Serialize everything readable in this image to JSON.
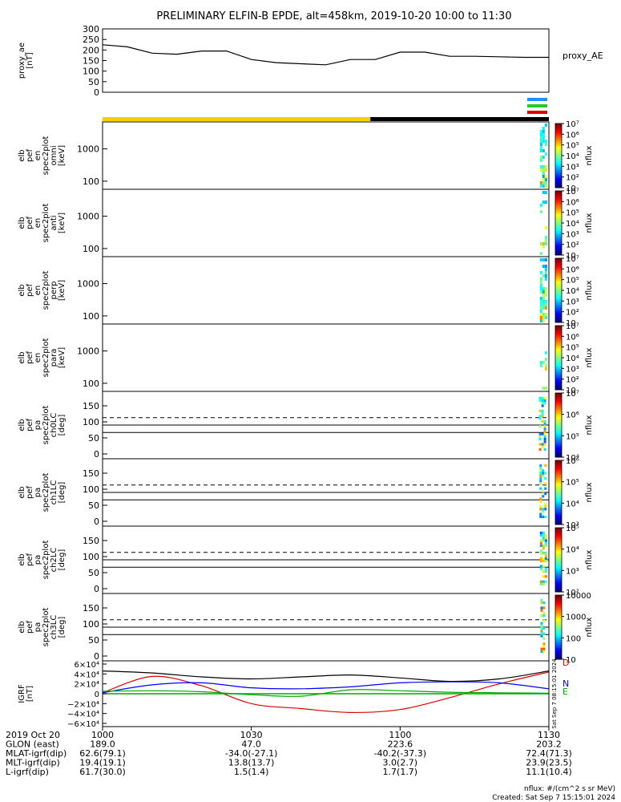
{
  "title": "PRELIMINARY ELFIN-B EPDE, alt=458km, 2019-10-20 10:00 to 11:30",
  "colors": {
    "ae_line": "#000000",
    "bar_yellow": "#f5d000",
    "bar_black": "#000000",
    "marker_blue": "#1e90ff",
    "marker_green": "#22cc22",
    "marker_red": "#dd0000",
    "igrf_n": "#0000ff",
    "igrf_e": "#00aa00",
    "igrf_d": "#dd0000",
    "igrf_total": "#000000"
  },
  "proxy_ae": {
    "ylabel_lines": [
      "proxy_ae",
      "[nT]"
    ],
    "legend": "proxy_AE",
    "yticks": [
      "300",
      "250",
      "200",
      "150",
      "100",
      "50",
      "0"
    ],
    "chart_data": {
      "type": "line",
      "ylim": [
        0,
        300
      ],
      "x_minutes": [
        0,
        5,
        10,
        15,
        20,
        25,
        30,
        35,
        40,
        45,
        50,
        55,
        60,
        65,
        70,
        75,
        80,
        85,
        90
      ],
      "values": [
        225,
        215,
        185,
        180,
        195,
        195,
        155,
        140,
        135,
        130,
        155,
        155,
        190,
        190,
        170,
        170,
        168,
        165,
        165
      ]
    }
  },
  "spec_panels": [
    {
      "ylabel": [
        "elb",
        "pef",
        "en",
        "spec2plot",
        "omni",
        "[keV]"
      ],
      "yticks": [
        "1000",
        "100"
      ],
      "cbar_ticks": [
        "10⁷",
        "10⁶",
        "10⁵",
        "10⁴",
        "10³",
        "10²",
        "10"
      ],
      "cbar_label": "nflux"
    },
    {
      "ylabel": [
        "elb",
        "pef",
        "en",
        "spec2plot",
        "anti",
        "[keV]"
      ],
      "yticks": [
        "1000",
        "100"
      ],
      "cbar_ticks": [
        "10⁷",
        "10⁶",
        "10⁵",
        "10⁴",
        "10³",
        "10²",
        "10"
      ],
      "cbar_label": "nflux"
    },
    {
      "ylabel": [
        "elb",
        "pef",
        "en",
        "spec2plot",
        "perp",
        "[keV]"
      ],
      "yticks": [
        "1000",
        "100"
      ],
      "cbar_ticks": [
        "10⁷",
        "10⁶",
        "10⁵",
        "10⁴",
        "10³",
        "10²",
        "10"
      ],
      "cbar_label": "nflux"
    },
    {
      "ylabel": [
        "elb",
        "pef",
        "en",
        "spec2plot",
        "para",
        "[keV]"
      ],
      "yticks": [
        "1000",
        "100"
      ],
      "cbar_ticks": [
        "10⁷",
        "10⁶",
        "10⁵",
        "10⁴",
        "10³",
        "10²",
        "10"
      ],
      "cbar_label": "nflux"
    }
  ],
  "pa_panels": [
    {
      "ylabel": [
        "elb",
        "pef",
        "pa",
        "spec2plot",
        "ch0LC",
        "[deg]"
      ],
      "yticks": [
        "150",
        "100",
        "50",
        "0"
      ],
      "cbar_ticks": [
        "10⁷",
        "10⁶",
        "10⁵",
        "10⁴"
      ],
      "cbar_label": "nflux"
    },
    {
      "ylabel": [
        "elb",
        "pef",
        "pa",
        "spec2plot",
        "ch1LC",
        "[deg]"
      ],
      "yticks": [
        "150",
        "100",
        "50",
        "0"
      ],
      "cbar_ticks": [
        "10⁶",
        "10⁵",
        "10⁴",
        "10³"
      ],
      "cbar_label": "nflux"
    },
    {
      "ylabel": [
        "elb",
        "pef",
        "pa",
        "spec2plot",
        "ch2LC",
        "[deg]"
      ],
      "yticks": [
        "150",
        "100",
        "50",
        "0"
      ],
      "cbar_ticks": [
        "10⁵",
        "10⁴",
        "10³",
        "10²"
      ],
      "cbar_label": "nflux"
    },
    {
      "ylabel": [
        "elb",
        "pef",
        "pa",
        "spec2plot",
        "ch3LC",
        "[deg]"
      ],
      "yticks": [
        "150",
        "100",
        "50",
        "0"
      ],
      "cbar_ticks": [
        "10000",
        "1000",
        "100",
        "10"
      ],
      "cbar_label": "nflux"
    }
  ],
  "igrf": {
    "ylabel_lines": [
      "IGRF",
      "[nT]"
    ],
    "yticks": [
      "6×10⁴",
      "4×10⁴",
      "2×10⁴",
      "0",
      "−2×10⁴",
      "−4×10⁴",
      "−6×10⁴"
    ],
    "legend": [
      "D",
      "N",
      "E"
    ],
    "side_note": "Sat Sep  7 08:15:01 2024",
    "chart_data": {
      "type": "line",
      "ylim": [
        -60000,
        60000
      ],
      "x_minutes": [
        0,
        10,
        20,
        30,
        40,
        50,
        60,
        70,
        80,
        90
      ],
      "series": [
        {
          "name": "",
          "values": [
            46000,
            42000,
            34000,
            30000,
            34000,
            38000,
            32000,
            25000,
            30000,
            46000
          ]
        },
        {
          "name": "D",
          "values": [
            2000,
            35000,
            16000,
            -20000,
            -30000,
            -38000,
            -32000,
            -8000,
            20000,
            44000
          ]
        },
        {
          "name": "N",
          "values": [
            2000,
            18000,
            22000,
            12000,
            10000,
            14000,
            22000,
            24000,
            22000,
            10000
          ]
        },
        {
          "name": "E",
          "values": [
            5000,
            6000,
            4000,
            -2000,
            -5000,
            8000,
            6000,
            3000,
            2000,
            1000
          ]
        }
      ]
    }
  },
  "xaxis": {
    "date": "2019 Oct 20",
    "ticks": [
      "1000",
      "1030",
      "1100",
      "1130"
    ],
    "rows": [
      {
        "label": "GLON (east)",
        "values": [
          "189.0",
          "47.0",
          "223.6",
          "203.2"
        ]
      },
      {
        "label": "MLAT-igrf(dip)",
        "values": [
          "62.6(79.1)",
          "-34.0(-27.1)",
          "-40.2(-37.3)",
          "72.4(71.3)"
        ]
      },
      {
        "label": "MLT-igrf(dip)",
        "values": [
          "19.4(19.1)",
          "13.8(13.7)",
          "3.0(2.7)",
          "23.9(23.5)"
        ]
      },
      {
        "label": "L-igrf(dip)",
        "values": [
          "61.7(30.0)",
          "1.5(1.4)",
          "1.7(1.7)",
          "11.1(10.4)"
        ]
      }
    ]
  },
  "footer": {
    "units": "nflux: #/(cm^2 s sr MeV)",
    "created": "Created: Sat Sep  7 15:15:01 2024"
  }
}
